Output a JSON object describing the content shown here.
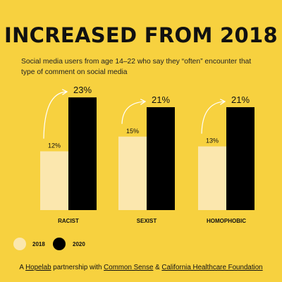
{
  "colors": {
    "background": "#f7d13f",
    "series_2018": "#fbe7ae",
    "series_2020": "#000000",
    "arrow": "#ffffff"
  },
  "title": "INCREASED FROM 2018",
  "subtitle": "Social media users from age 14–22 who say they “often” encounter that type of comment on social media",
  "chart_data": {
    "type": "bar",
    "categories": [
      "RACIST",
      "SEXIST",
      "HOMOPHOBIC"
    ],
    "series": [
      {
        "name": "2018",
        "values": [
          12,
          15,
          13
        ],
        "labels": [
          "12%",
          "15%",
          "13%"
        ]
      },
      {
        "name": "2020",
        "values": [
          23,
          21,
          21
        ],
        "labels": [
          "23%",
          "21%",
          "21%"
        ]
      }
    ],
    "ylim": [
      0,
      25
    ],
    "grid": false,
    "legend": "bottom-left",
    "annotations": "curved arrow from each 2018 bar to its 2020 bar"
  },
  "legend": [
    {
      "label": "2018"
    },
    {
      "label": "2020"
    }
  ],
  "footer": {
    "prefix": "A ",
    "org1": "Hopelab",
    "mid1": " partnership with ",
    "org2": "Common Sense",
    "mid2": " & ",
    "org3": "California Healthcare Foundation"
  }
}
